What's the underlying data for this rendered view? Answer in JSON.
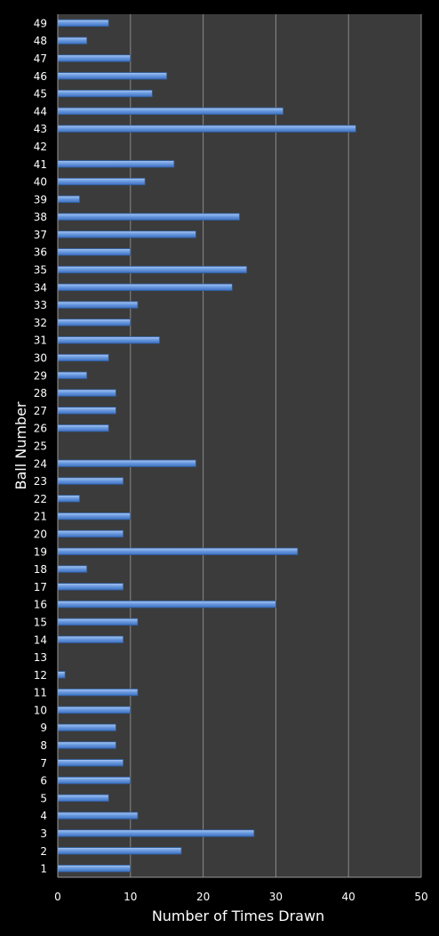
{
  "chart_data": {
    "type": "bar",
    "orientation": "horizontal",
    "xlabel": "Number of Times Drawn",
    "ylabel": "Ball Number",
    "xlim": [
      0,
      50
    ],
    "xticks": [
      0,
      10,
      20,
      30,
      40,
      50
    ],
    "grid": "vertical",
    "colors": {
      "bar": "#5b8fd8",
      "bar_edge": "#2e5d9f",
      "plot_bg": "#3b3b3b",
      "page_bg": "#000000",
      "grid": "#8a8a8a"
    },
    "categories": [
      "1",
      "2",
      "3",
      "4",
      "5",
      "6",
      "7",
      "8",
      "9",
      "10",
      "11",
      "12",
      "13",
      "14",
      "15",
      "16",
      "17",
      "18",
      "19",
      "20",
      "21",
      "22",
      "23",
      "24",
      "25",
      "26",
      "27",
      "28",
      "29",
      "30",
      "31",
      "32",
      "33",
      "34",
      "35",
      "36",
      "37",
      "38",
      "39",
      "40",
      "41",
      "42",
      "43",
      "44",
      "45",
      "46",
      "47",
      "48",
      "49"
    ],
    "values": [
      10,
      17,
      27,
      11,
      7,
      10,
      9,
      8,
      8,
      10,
      11,
      1,
      0,
      9,
      11,
      30,
      9,
      4,
      33,
      9,
      10,
      3,
      9,
      19,
      0,
      7,
      8,
      8,
      4,
      7,
      14,
      10,
      11,
      24,
      26,
      10,
      19,
      25,
      3,
      12,
      16,
      0,
      41,
      31,
      13,
      15,
      10,
      4,
      7
    ]
  }
}
